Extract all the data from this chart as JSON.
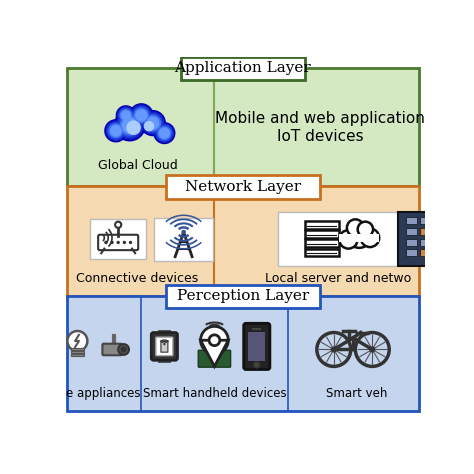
{
  "fig_bg": "#ffffff",
  "app_bg": "#d4e8c2",
  "app_border": "#4a7a30",
  "app_label_border": "#3a6a25",
  "net_bg": "#f5d9b0",
  "net_border": "#c87020",
  "perc_bg": "#c5d5ee",
  "perc_border": "#2255bb",
  "white": "#ffffff",
  "black": "#000000",
  "divider_app": "#7aaa5a",
  "divider_net": "#c87020",
  "divider_perc": "#2255bb",
  "app_layer_label": "Application Layer",
  "net_layer_label": "Network Layer",
  "perc_layer_label": "Perception Layer",
  "app_sub1": "Global Cloud",
  "app_sub2": "Mobile and web application\nIoT devices",
  "net_sub1": "Connective devices",
  "net_sub2": "Local server and netwo",
  "perc_sub1": "e appliances",
  "perc_sub2": "Smart handheld devices",
  "perc_sub3": "Smart veh"
}
